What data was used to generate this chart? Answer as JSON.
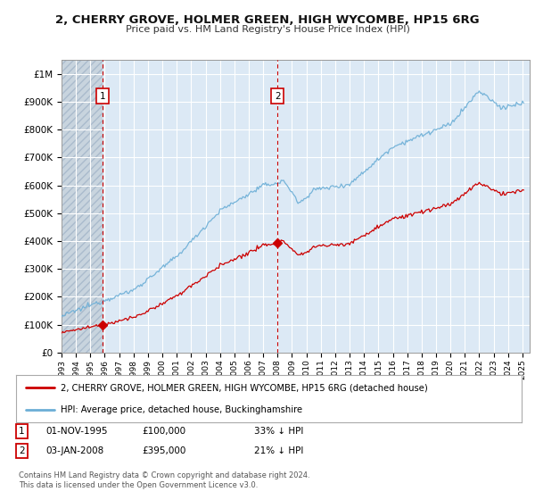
{
  "title": "2, CHERRY GROVE, HOLMER GREEN, HIGH WYCOMBE, HP15 6RG",
  "subtitle": "Price paid vs. HM Land Registry's House Price Index (HPI)",
  "ylim": [
    0,
    1050000
  ],
  "yticks": [
    0,
    100000,
    200000,
    300000,
    400000,
    500000,
    600000,
    700000,
    800000,
    900000,
    1000000
  ],
  "ytick_labels": [
    "£0",
    "£100K",
    "£200K",
    "£300K",
    "£400K",
    "£500K",
    "£600K",
    "£700K",
    "£800K",
    "£900K",
    "£1M"
  ],
  "sale1_date": 1995.833,
  "sale1_price": 100000,
  "sale1_label": "1",
  "sale2_date": 2008.0,
  "sale2_price": 395000,
  "sale2_label": "2",
  "hpi_color": "#6baed6",
  "sale_color": "#cc0000",
  "dashed_color": "#cc0000",
  "background_color": "#ffffff",
  "plot_bg_color": "#dce9f5",
  "hatch_color": "#c0c8d0",
  "grid_color": "#ffffff",
  "legend_label_sale": "2, CHERRY GROVE, HOLMER GREEN, HIGH WYCOMBE, HP15 6RG (detached house)",
  "legend_label_hpi": "HPI: Average price, detached house, Buckinghamshire",
  "note1_label": "1",
  "note1_date": "01-NOV-1995",
  "note1_price": "£100,000",
  "note1_hpi": "33% ↓ HPI",
  "note2_label": "2",
  "note2_date": "03-JAN-2008",
  "note2_price": "£395,000",
  "note2_hpi": "21% ↓ HPI",
  "footer": "Contains HM Land Registry data © Crown copyright and database right 2024.\nThis data is licensed under the Open Government Licence v3.0.",
  "xlim_start": 1993.0,
  "xlim_end": 2025.5
}
